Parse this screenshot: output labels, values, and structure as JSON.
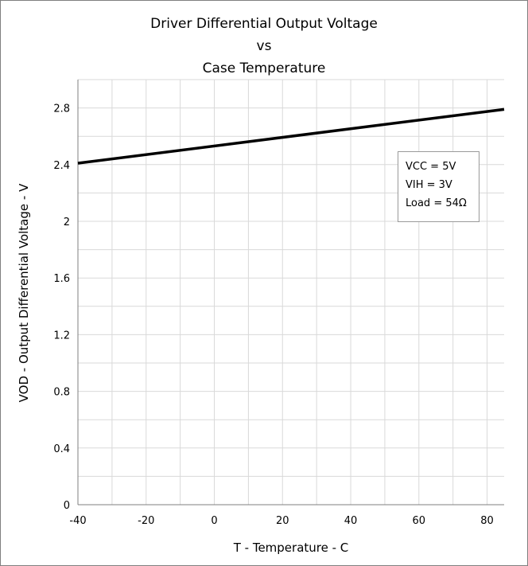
{
  "chart_data": {
    "type": "line",
    "title_lines": [
      "Driver Differential Output Voltage",
      "vs",
      "Case Temperature"
    ],
    "xlabel": "T - Temperature - C",
    "ylabel": "VOD - Output Differential Voltage - V",
    "xlim": [
      -40,
      85
    ],
    "ylim": [
      0,
      3.0
    ],
    "xticks": [
      -40,
      -20,
      0,
      20,
      40,
      60,
      80
    ],
    "xtick_labels": [
      "-40",
      "-20",
      "0",
      "20",
      "40",
      "60",
      "80"
    ],
    "yticks": [
      0,
      0.4,
      0.8,
      1.2,
      1.6,
      2.0,
      2.4,
      2.8
    ],
    "ytick_labels": [
      "0",
      "0.4",
      "0.8",
      "1.2",
      "1.6",
      "2",
      "2.4",
      "2.8"
    ],
    "grid": true,
    "annotation_lines": [
      "VCC = 5V",
      "VIH = 3V",
      "Load = 54Ω"
    ],
    "series": [
      {
        "x": [
          -40,
          85
        ],
        "y": [
          2.41,
          2.79
        ]
      }
    ],
    "line_color": "#000000",
    "grid_color": "#d9d9d9"
  }
}
